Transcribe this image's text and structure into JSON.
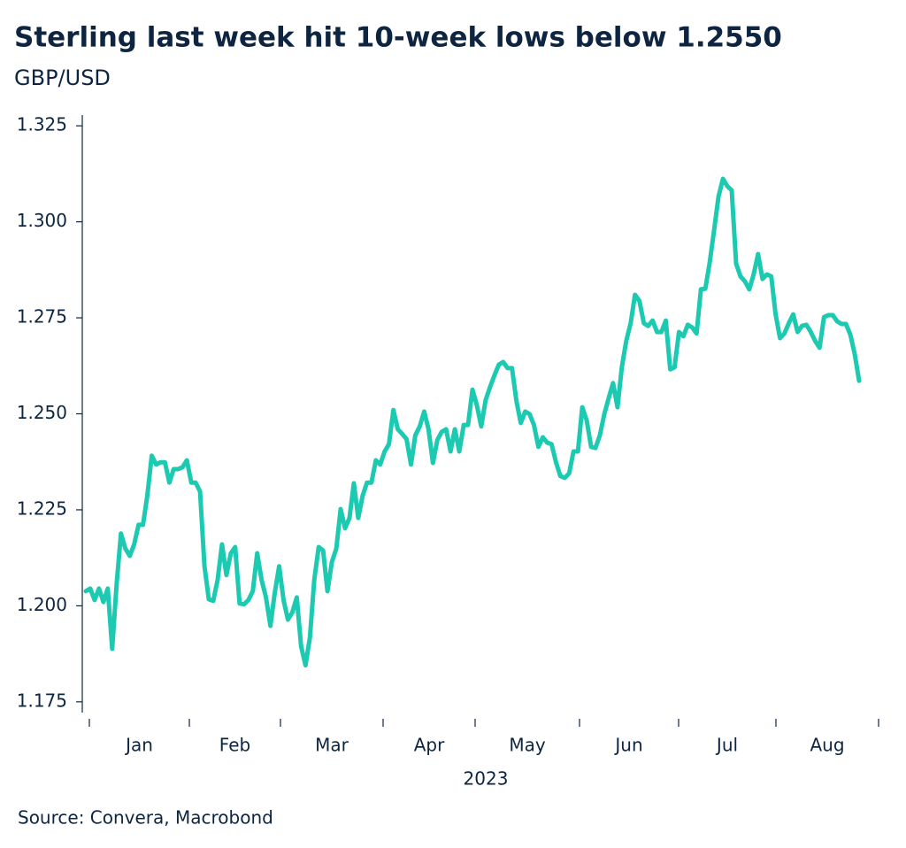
{
  "chart_data": {
    "type": "line",
    "title": "Sterling last week hit 10-week lows below 1.2550",
    "subtitle": "GBP/USD",
    "source": "Source: Convera, Macrobond",
    "xlabel": "2023",
    "x_labels": [
      "Jan",
      "Feb",
      "Mar",
      "Apr",
      "May",
      "Jun",
      "Jul",
      "Aug"
    ],
    "color": "#1cc9b1",
    "ylim": [
      1.1722,
      1.3278
    ],
    "yticks": [
      1.175,
      {
        "value": 1.2,
        "label": "1.200"
      },
      1.225,
      {
        "value": 1.25,
        "label": "1.250"
      },
      1.275,
      {
        "value": 1.3,
        "label": "1.300"
      },
      1.325
    ],
    "values": [
      1.2038,
      1.2045,
      1.2015,
      1.2045,
      1.201,
      1.2045,
      1.1888,
      1.2056,
      1.2188,
      1.2149,
      1.213,
      1.216,
      1.2211,
      1.2211,
      1.2287,
      1.2391,
      1.2368,
      1.2374,
      1.2374,
      1.2321,
      1.2356,
      1.2356,
      1.2361,
      1.2379,
      1.2321,
      1.2321,
      1.2298,
      1.2103,
      1.2017,
      1.2013,
      1.2068,
      1.216,
      1.208,
      1.2137,
      1.2153,
      1.2006,
      1.2004,
      1.2015,
      1.2038,
      1.2137,
      1.2068,
      1.2022,
      1.1948,
      1.2033,
      1.2103,
      1.2015,
      1.1964,
      1.1983,
      1.2022,
      1.1895,
      1.1845,
      1.1918,
      1.2068,
      1.2153,
      1.2144,
      1.2038,
      1.2114,
      1.2149,
      1.2252,
      1.2202,
      1.2229,
      1.2319,
      1.2229,
      1.2287,
      1.2321,
      1.2321,
      1.2379,
      1.2368,
      1.2402,
      1.2421,
      1.251,
      1.246,
      1.2448,
      1.2434,
      1.2368,
      1.2444,
      1.2467,
      1.2506,
      1.246,
      1.2372,
      1.2432,
      1.2453,
      1.246,
      1.2402,
      1.246,
      1.2402,
      1.2471,
      1.2471,
      1.2563,
      1.2522,
      1.2467,
      1.2536,
      1.257,
      1.26,
      1.2628,
      1.2635,
      1.2619,
      1.2619,
      1.2533,
      1.2476,
      1.2506,
      1.2499,
      1.2471,
      1.2414,
      1.2439,
      1.2425,
      1.2421,
      1.2374,
      1.2338,
      1.2333,
      1.2345,
      1.2402,
      1.2402,
      1.2517,
      1.2483,
      1.2414,
      1.2411,
      1.2444,
      1.2499,
      1.254,
      1.258,
      1.2517,
      1.2621,
      1.269,
      1.2736,
      1.281,
      1.2794,
      1.2736,
      1.2729,
      1.2743,
      1.2713,
      1.2713,
      1.2743,
      1.2616,
      1.2621,
      1.2713,
      1.2702,
      1.2732,
      1.2725,
      1.2709,
      1.2824,
      1.2826,
      1.2895,
      1.2978,
      1.3066,
      1.3112,
      1.3093,
      1.3082,
      1.2891,
      1.2858,
      1.2845,
      1.2824,
      1.2863,
      1.2916,
      1.2851,
      1.2863,
      1.2858,
      1.2759,
      1.2697,
      1.2709,
      1.2736,
      1.2759,
      1.2713,
      1.2729,
      1.2732,
      1.2713,
      1.269,
      1.2672,
      1.2752,
      1.2757,
      1.2757,
      1.2741,
      1.2734,
      1.2734,
      1.2706,
      1.2656,
      1.2586
    ]
  }
}
